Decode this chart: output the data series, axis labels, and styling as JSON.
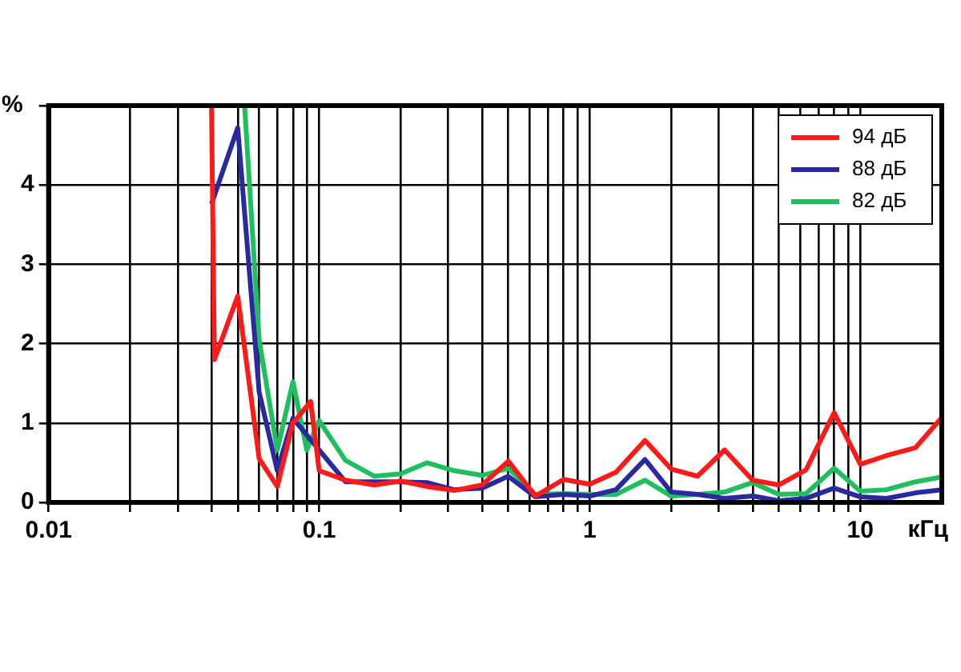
{
  "chart_data": {
    "type": "line",
    "xlabel": "кГц",
    "ylabel": "%",
    "log": "x",
    "grid": true,
    "legend": "top right",
    "marker": "none",
    "line_style": "solid",
    "xlim": [
      0.01,
      20
    ],
    "ylim": [
      0,
      5
    ],
    "xticks": [
      0.01,
      {
        "value": 0.02,
        "label": null
      },
      {
        "value": 0.03,
        "label": null
      },
      {
        "value": 0.04,
        "label": null
      },
      {
        "value": 0.05,
        "label": null
      },
      {
        "value": 0.06,
        "label": null
      },
      {
        "value": 0.07,
        "label": null
      },
      {
        "value": 0.08,
        "label": null
      },
      {
        "value": 0.09,
        "label": null
      },
      0.1,
      {
        "value": 0.2,
        "label": null
      },
      {
        "value": 0.3,
        "label": null
      },
      {
        "value": 0.4,
        "label": null
      },
      {
        "value": 0.5,
        "label": null
      },
      {
        "value": 0.6,
        "label": null
      },
      {
        "value": 0.7,
        "label": null
      },
      {
        "value": 0.8,
        "label": null
      },
      {
        "value": 0.9,
        "label": null
      },
      1,
      {
        "value": 2,
        "label": null
      },
      {
        "value": 3,
        "label": null
      },
      {
        "value": 4,
        "label": null
      },
      {
        "value": 5,
        "label": null
      },
      {
        "value": 6,
        "label": null
      },
      {
        "value": 7,
        "label": null
      },
      {
        "value": 8,
        "label": null
      },
      {
        "value": 9,
        "label": null
      },
      10
    ],
    "yticks": [
      0,
      1,
      2,
      3,
      4,
      {
        "value": 5,
        "label": null
      }
    ],
    "series": [
      {
        "name": "94 дБ",
        "color": "#ff1a1a",
        "x": [
          0.04,
          0.041,
          0.05,
          0.06,
          0.07,
          0.08,
          0.093,
          0.1,
          0.125,
          0.16,
          0.2,
          0.25,
          0.315,
          0.4,
          0.5,
          0.63,
          0.8,
          1,
          1.25,
          1.6,
          2,
          2.5,
          3.15,
          4,
          5,
          6.3,
          8,
          10,
          12.5,
          16,
          20
        ],
        "values": [
          5,
          1.8,
          2.6,
          0.55,
          0.2,
          1.0,
          1.27,
          0.4,
          0.28,
          0.22,
          0.27,
          0.2,
          0.15,
          0.22,
          0.52,
          0.08,
          0.29,
          0.23,
          0.38,
          0.78,
          0.42,
          0.33,
          0.66,
          0.28,
          0.22,
          0.41,
          1.13,
          0.48,
          0.59,
          0.69,
          1.07
        ]
      },
      {
        "name": "88 дБ",
        "color": "#2a2aa0",
        "x": [
          0.04,
          0.05,
          0.06,
          0.07,
          0.08,
          0.1,
          0.125,
          0.16,
          0.2,
          0.25,
          0.315,
          0.4,
          0.5,
          0.63,
          0.8,
          1,
          1.25,
          1.6,
          2,
          2.5,
          3.15,
          4,
          5,
          6.3,
          8,
          10,
          12.5,
          16,
          20
        ],
        "values": [
          3.76,
          4.72,
          1.39,
          0.4,
          1.06,
          0.66,
          0.26,
          null,
          0.26,
          0.25,
          0.16,
          0.18,
          0.33,
          0.07,
          0.1,
          0.08,
          0.16,
          0.54,
          0.13,
          0.1,
          0.05,
          0.08,
          0.02,
          0.05,
          0.18,
          0.07,
          0.05,
          0.12,
          0.16
        ]
      },
      {
        "name": "82 дБ",
        "color": "#1fbf5f",
        "x": [
          0.053,
          0.06,
          0.07,
          0.08,
          0.09,
          0.1,
          0.125,
          0.16,
          0.2,
          0.25,
          0.315,
          0.4,
          0.5,
          0.63,
          0.8,
          1,
          1.25,
          1.6,
          2,
          2.5,
          3.15,
          4,
          5,
          6.3,
          8,
          10,
          12.5,
          16,
          20
        ],
        "values": [
          5,
          2.05,
          0.66,
          1.52,
          0.66,
          1.03,
          0.53,
          0.33,
          0.36,
          0.5,
          0.4,
          0.34,
          0.43,
          0.1,
          0.11,
          0.1,
          0.1,
          0.28,
          0.08,
          0.1,
          0.13,
          0.25,
          0.1,
          0.11,
          0.43,
          0.14,
          0.16,
          0.26,
          0.32
        ]
      }
    ]
  }
}
